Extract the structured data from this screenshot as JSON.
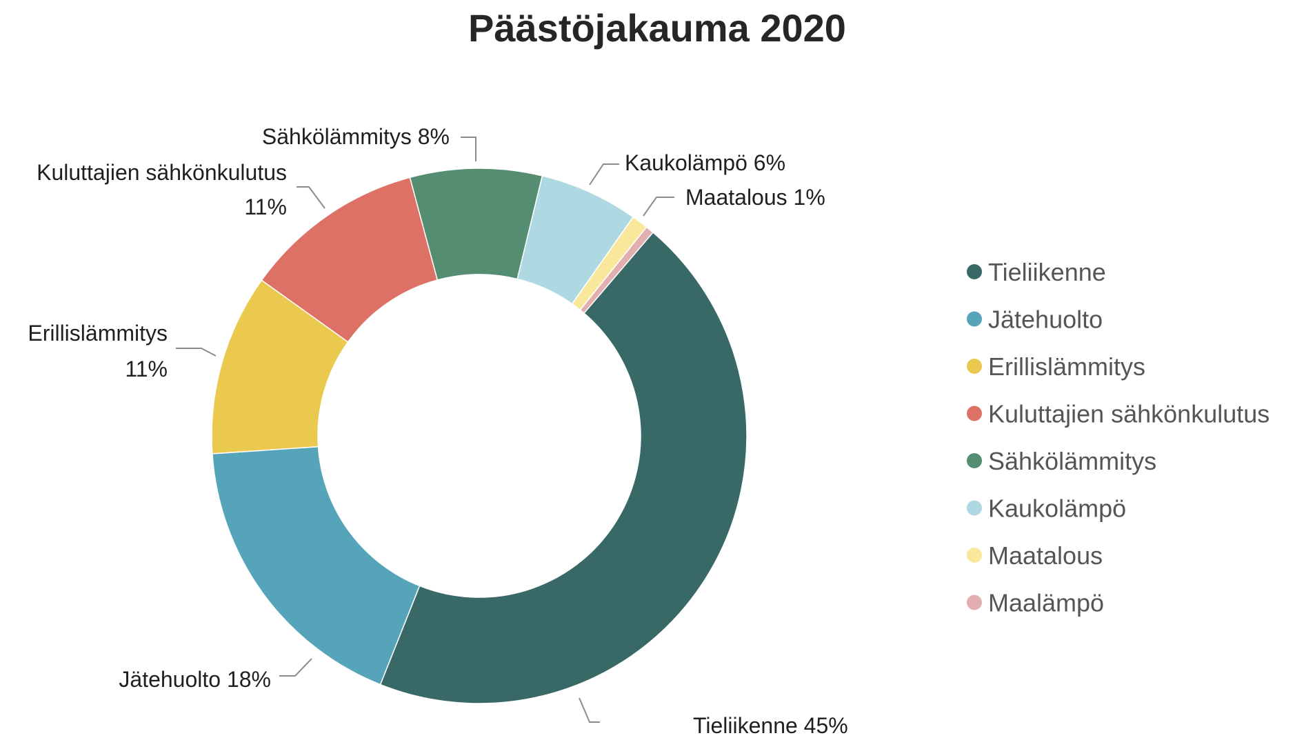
{
  "chart_data": {
    "type": "pie",
    "subtype": "donut",
    "title": "Päästöjakauma 2020",
    "legend_position": "right",
    "slices": [
      {
        "name": "Tieliikenne",
        "value": 45,
        "label": "Tieliikenne 45%",
        "color": "#386966"
      },
      {
        "name": "Jätehuolto",
        "value": 18,
        "label": "Jätehuolto 18%",
        "color": "#56a4b9"
      },
      {
        "name": "Erillislämmitys",
        "value": 11,
        "label": "Erillislämmitys\n11%",
        "color": "#eac94e"
      },
      {
        "name": "Kuluttajien sähkönkulutus",
        "value": 11,
        "label": "Kuluttajien sähkönkulutus\n11%",
        "color": "#de7166"
      },
      {
        "name": "Sähkölämmitys",
        "value": 8,
        "label": "Sähkölämmitys 8%",
        "color": "#558d73"
      },
      {
        "name": "Kaukolämpö",
        "value": 6,
        "label": "Kaukolämpö 6%",
        "color": "#afd9e2"
      },
      {
        "name": "Maatalous",
        "value": 1,
        "label": "Maatalous 1%",
        "color": "#f9e89b"
      },
      {
        "name": "Maalämpö",
        "value": 0.5,
        "label": "",
        "color": "#e2aeb0"
      }
    ]
  }
}
